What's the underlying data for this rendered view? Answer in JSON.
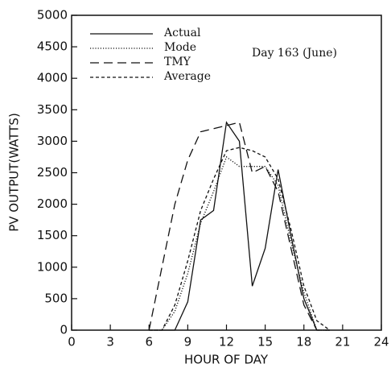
{
  "chart_data": {
    "type": "line",
    "xlabel": "HOUR OF DAY",
    "ylabel": "PV OUTPUT(WATTS)",
    "annotation": "Day 163 (June)",
    "x": [
      6,
      7,
      8,
      9,
      10,
      11,
      12,
      13,
      14,
      15,
      16,
      17,
      18,
      19,
      20
    ],
    "series": [
      {
        "name": "Actual",
        "color": "#111111",
        "dash": "none",
        "values": [
          0,
          0,
          0,
          450,
          1750,
          1900,
          3300,
          3000,
          700,
          1300,
          2550,
          1500,
          500,
          0,
          0
        ]
      },
      {
        "name": "Mode",
        "color": "#111111",
        "dash": "1.2,2",
        "values": [
          0,
          0,
          300,
          900,
          1700,
          2200,
          2750,
          2600,
          2600,
          2600,
          2300,
          1400,
          600,
          0,
          0
        ]
      },
      {
        "name": "TMY",
        "color": "#111111",
        "dash": "11,6",
        "values": [
          0,
          1000,
          2000,
          2700,
          3150,
          3200,
          3250,
          3300,
          2500,
          2600,
          2200,
          1300,
          400,
          0,
          0
        ]
      },
      {
        "name": "Average",
        "color": "#111111",
        "dash": "4,3",
        "values": [
          0,
          0,
          400,
          1100,
          1900,
          2400,
          2850,
          2900,
          2850,
          2750,
          2400,
          1600,
          700,
          150,
          0
        ]
      }
    ],
    "xlim": [
      0,
      24
    ],
    "xticks": [
      0,
      3,
      6,
      9,
      12,
      15,
      18,
      21,
      24
    ],
    "ylim": [
      0,
      5000
    ],
    "yticks": [
      0,
      500,
      1000,
      1500,
      2000,
      2500,
      3000,
      3500,
      4000,
      4500,
      5000
    ],
    "grid": false,
    "legend": "upper left"
  }
}
